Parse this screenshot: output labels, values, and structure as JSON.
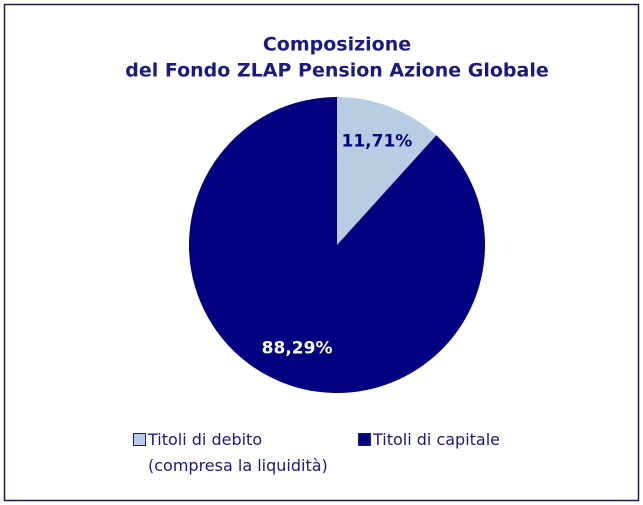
{
  "chart_data": {
    "type": "pie",
    "title": [
      "Composizione",
      "del Fondo ZLAP Pension Azione Globale"
    ],
    "categories": [
      "Titoli di debito\n(compresa la liquidità)",
      "Titoli di capitale"
    ],
    "values": [
      11.71,
      88.29
    ],
    "value_labels": [
      "11,71%",
      "88,29%"
    ],
    "colors": [
      "#b8cce4",
      "#000080"
    ],
    "label_colors": [
      "#000080",
      "#ffffff"
    ],
    "legend": "bottom"
  }
}
